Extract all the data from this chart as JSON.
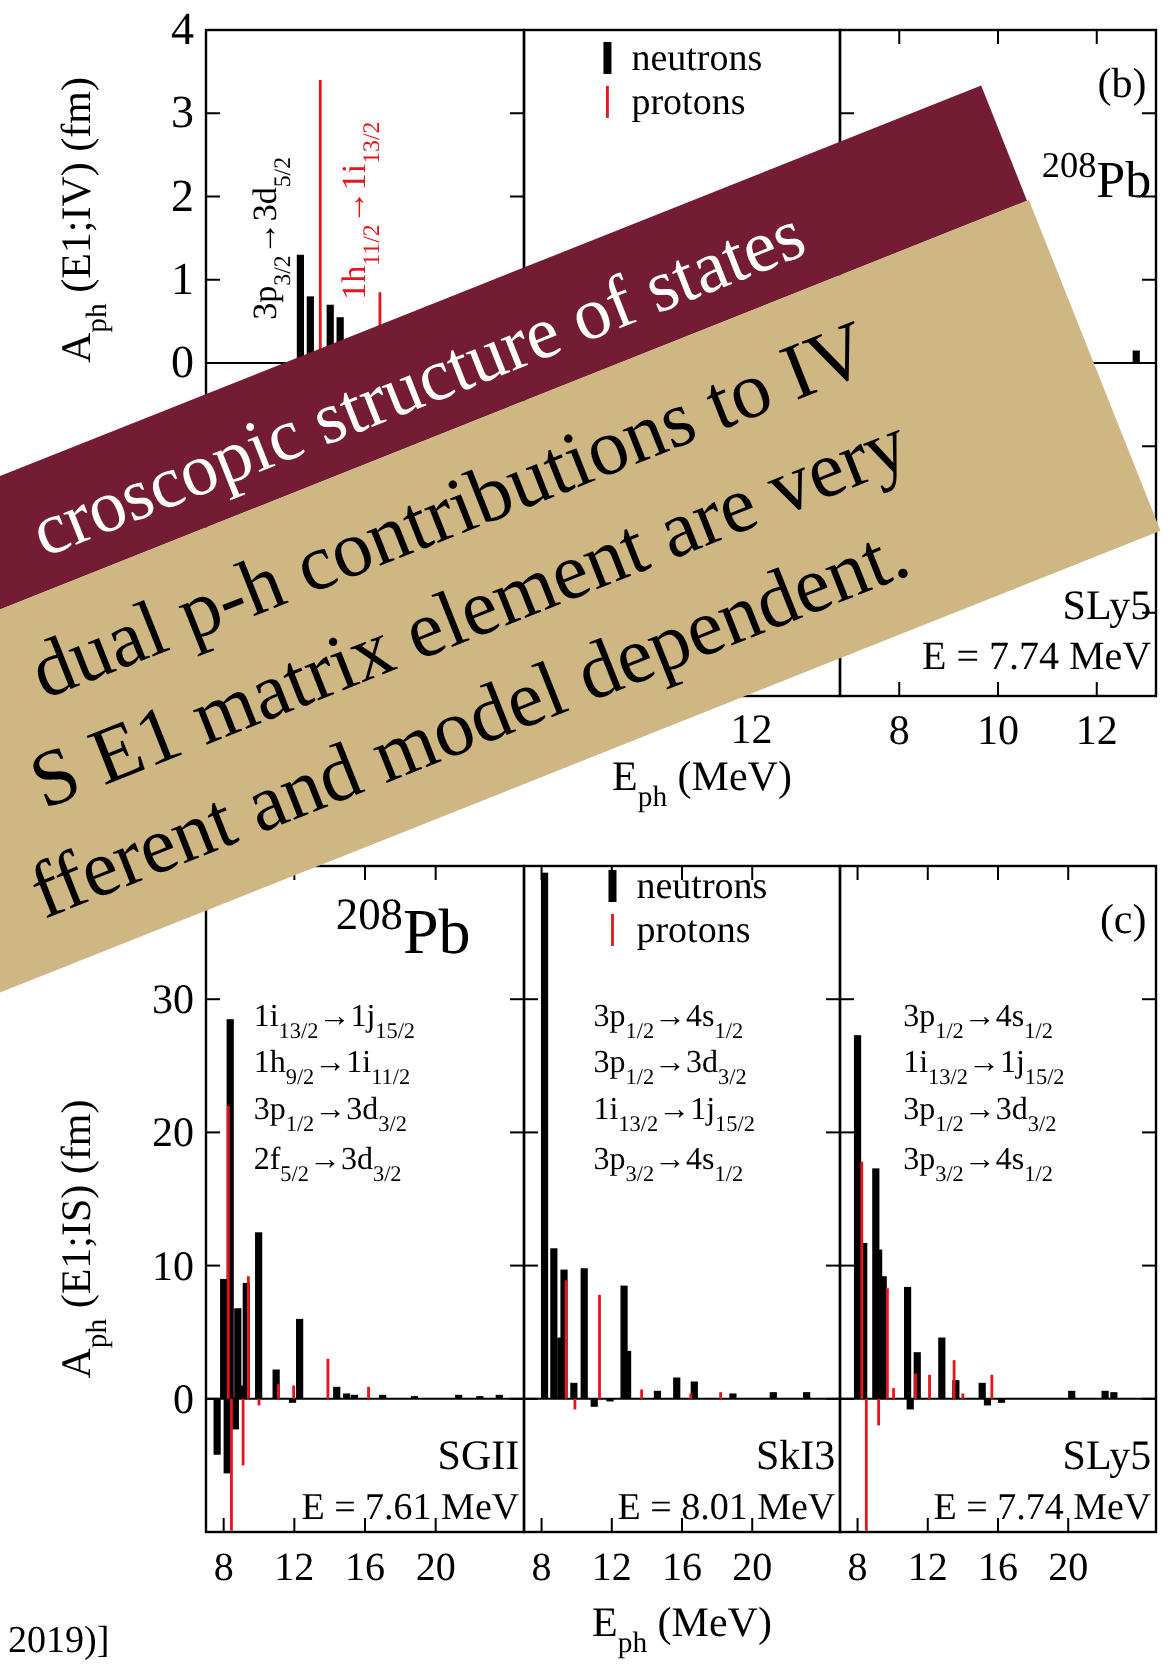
{
  "chart_data": [
    {
      "type": "bar",
      "ylabel": "A$_{ph}$ (E1;IV) (fm)",
      "categories": [
        null,
        null,
        null,
        null,
        null,
        null,
        null,
        null,
        null,
        null,
        null,
        null,
        null,
        null,
        null,
        null,
        null,
        null,
        null,
        null,
        null,
        null,
        null,
        null,
        null,
        null,
        null,
        null,
        null,
        null,
        null,
        null
      ],
      "ylim": [
        -4,
        4
      ],
      "yticks": [
        {
          "value": -3,
          "label": null
        },
        {
          "value": -2,
          "label": null
        },
        {
          "value": -1,
          "label": null
        },
        0,
        1,
        2,
        3,
        4
      ],
      "tick_labels": "y",
      "annotations": [
        "3p$_{3/2}$→3d$_{5/2}$",
        "1h$_{11/2}$→1i$_{13/2}$"
      ],
      "series": [
        {
          "color": "#000000",
          "values": [
            null,
            null,
            null,
            null,
            null,
            null,
            null,
            null,
            null,
            1.3,
            0.8,
            null,
            0.7,
            0.55,
            null,
            null,
            null,
            null,
            null,
            null,
            null,
            null,
            null,
            null,
            null,
            null,
            null,
            null,
            null,
            null,
            null,
            null
          ]
        },
        {
          "color": "#e8141b",
          "values": [
            null,
            null,
            null,
            null,
            null,
            null,
            null,
            null,
            null,
            null,
            null,
            3.4,
            null,
            null,
            null,
            null,
            null,
            0.85,
            null,
            null,
            null,
            null,
            null,
            null,
            null,
            null,
            null,
            null,
            null,
            null,
            null,
            null
          ]
        }
      ]
    },
    {
      "type": "other",
      "xlabel": "E$_{ph}$ (MeV)",
      "annotations": [
        "neutrons",
        "protons",
        "12"
      ],
      "colors": [
        "#000000",
        "#e8141b"
      ]
    },
    {
      "type": "bar",
      "xlim": [
        6.8,
        13.2
      ],
      "ylim": [
        -4,
        4
      ],
      "xticks": [
        8,
        10,
        12
      ],
      "yticks": [
        {
          "value": -3,
          "label": null
        },
        {
          "value": -2,
          "label": null
        },
        {
          "value": -1,
          "label": null
        },
        0,
        1,
        2,
        3,
        4
      ],
      "tick_labels": "x",
      "annotations": [
        "(b)",
        "$^{208}$Pb",
        "SLy5",
        "E = 7.74 MeV"
      ],
      "series": [
        {
          "color": "#000000",
          "x": [
            12.8
          ],
          "values": [
            0.15
          ]
        }
      ]
    },
    {
      "type": "bar",
      "ylabel": "A$_{ph}$ (E1;IS) (fm)",
      "xlim": [
        7,
        25
      ],
      "ylim": [
        -10,
        40
      ],
      "xticks": [
        8,
        12,
        16,
        20
      ],
      "yticks": [
        0,
        10,
        20,
        30
      ],
      "annotations": [
        "$^{208}$Pb",
        "1i$_{13/2}$→1j$_{15/2}$",
        "1h$_{9/2}$→1i$_{11/2}$",
        "3p$_{1/2}$→3d$_{3/2}$",
        "2f$_{5/2}$→3d$_{3/2}$",
        "SGII",
        "E = 7.61 MeV"
      ],
      "series": [
        {
          "color": "#000000",
          "x": [
            7.63,
            8.0,
            8.2,
            8.37,
            8.66,
            8.8,
            9.0,
            9.28,
            9.98,
            10.97,
            11.9,
            12.3,
            14.4,
            14.96,
            15.4,
            17.0,
            18.8,
            21.3,
            22.5,
            23.6
          ],
          "values": [
            -4.2,
            9,
            -5.6,
            28.5,
            -2.3,
            6.8,
            1,
            8.7,
            12.5,
            2.2,
            -0.3,
            6,
            0.9,
            0.4,
            0.3,
            0.3,
            0.2,
            0.3,
            0.2,
            0.3
          ]
        },
        {
          "color": "#e8141b",
          "x": [
            8.26,
            8.44,
            9.1,
            9.4,
            10.0,
            11.1,
            11.96,
            13.9,
            16.2
          ],
          "values": [
            22,
            -9.9,
            -5,
            9.2,
            -0.5,
            1.1,
            1,
            3,
            0.9
          ]
        }
      ]
    },
    {
      "type": "bar",
      "xlabel": "E$_{ph}$ (MeV)",
      "xlim": [
        7,
        25
      ],
      "ylim": [
        -10,
        40
      ],
      "xticks": [
        8,
        12,
        16,
        20
      ],
      "yticks": [
        0,
        10,
        20,
        30
      ],
      "tick_labels": "x",
      "legend": "top",
      "annotations": [
        "3p$_{1/2}$→4s$_{1/2}$",
        "3p$_{1/2}$→3d$_{3/2}$",
        "1i$_{13/2}$→1j$_{15/2}$",
        "3p$_{3/2}$→4s$_{1/2}$",
        "SkI3",
        "E = 8.01 MeV"
      ],
      "series": [
        {
          "name": "neutrons",
          "color": "#000000",
          "x": [
            8.17,
            8.7,
            9.1,
            9.28,
            9.84,
            10.43,
            11.0,
            11.9,
            12.7,
            12.9,
            14.6,
            15.7,
            16.7,
            18.9,
            21.2,
            23.1
          ],
          "values": [
            39.5,
            11.3,
            4.6,
            9.7,
            1.2,
            9.8,
            -0.6,
            -0.2,
            8.5,
            3.6,
            0.6,
            1.6,
            1.3,
            0.4,
            0.5,
            0.5
          ]
        },
        {
          "name": "protons",
          "color": "#e8141b",
          "x": [
            9.4,
            9.9,
            11.3,
            13.7,
            16.5,
            18.2
          ],
          "values": [
            8.9,
            -0.8,
            7.8,
            0.7,
            0.4,
            0.5
          ]
        }
      ]
    },
    {
      "type": "bar",
      "xlim": [
        7,
        25
      ],
      "ylim": [
        -10,
        40
      ],
      "xticks": [
        8,
        12,
        16,
        20
      ],
      "yticks": [
        0,
        10,
        20,
        30
      ],
      "tick_labels": "x",
      "annotations": [
        "(c)",
        "3p$_{1/2}$→4s$_{1/2}$",
        "1i$_{13/2}$→1j$_{15/2}$",
        "3p$_{1/2}$→3d$_{3/2}$",
        "3p$_{3/2}$→4s$_{1/2}$",
        "SLy5",
        "E = 7.74 MeV"
      ],
      "series": [
        {
          "color": "#000000",
          "x": [
            8.0,
            8.35,
            9.04,
            9.2,
            9.46,
            10.85,
            11.0,
            11.4,
            12.8,
            13.6,
            15.1,
            15.4,
            16.2,
            20.2,
            22.1,
            22.6
          ],
          "values": [
            27.3,
            11.7,
            17.3,
            11.2,
            9.2,
            8.4,
            -0.8,
            3.5,
            4.6,
            1.4,
            1.2,
            -0.5,
            -0.3,
            0.6,
            0.6,
            0.5
          ]
        },
        {
          "color": "#e8141b",
          "x": [
            8.24,
            8.5,
            9.2,
            9.7,
            10.05,
            11.3,
            12.1,
            13.5,
            14.0,
            15.65
          ],
          "values": [
            17.8,
            -9.9,
            -2,
            8.3,
            0.8,
            1.9,
            1.8,
            2.9,
            0.4,
            1.8
          ]
        }
      ]
    },
    {
      "type": "other",
      "annotations": [
        "croscopic structure of states",
        "dual p-h contributions to IV",
        "S E1 matrix element are very",
        "fferent and model dependent.",
        "2019)]"
      ]
    }
  ]
}
